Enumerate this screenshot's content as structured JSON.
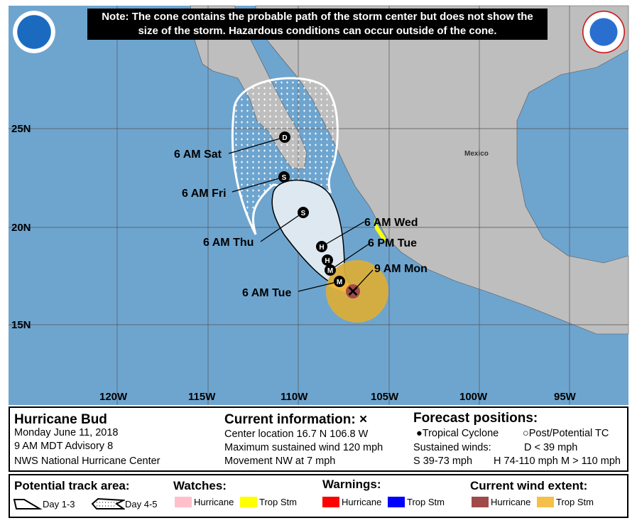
{
  "note": "Note: The cone contains the probable path of the storm center but does not show the size of the storm. Hazardous conditions can occur outside of the cone.",
  "logos": {
    "left": "NOAA",
    "right": "NATIONAL WEATHER SERVICE"
  },
  "map": {
    "country_label": "Mexico",
    "lon_labels": [
      "120W",
      "115W",
      "110W",
      "105W",
      "100W",
      "95W"
    ],
    "lat_labels": [
      "25N",
      "20N",
      "15N"
    ],
    "colors": {
      "ocean": "#6ea5cf",
      "land": "#bebebe",
      "cone_day13": "#dde8f1",
      "trop_storm_wind": "#f2b53c",
      "hurricane_wind": "#a04b49",
      "trop_storm_watch": "#ffff00"
    },
    "forecast_points": [
      {
        "label": "9 AM Mon",
        "marker": "x"
      },
      {
        "label": "6 AM Tue",
        "marker": "M"
      },
      {
        "label": "6 PM Tue",
        "marker": "M"
      },
      {
        "label": "6 AM Wed",
        "marker": "H"
      },
      {
        "label": "",
        "marker": "H"
      },
      {
        "label": "6 AM Thu",
        "marker": "S"
      },
      {
        "label": "6 AM Fri",
        "marker": "S"
      },
      {
        "label": "6 AM Sat",
        "marker": "D"
      }
    ]
  },
  "info": {
    "storm_name": "Hurricane Bud",
    "date": "Monday June 11, 2018",
    "advisory": "9 AM MDT Advisory 8",
    "center": "NWS National Hurricane Center",
    "current_title": "Current information: ×",
    "location": "Center location 16.7 N 106.8 W",
    "max_wind": "Maximum sustained wind 120 mph",
    "movement": "Movement NW at 7 mph",
    "forecast_title": "Forecast positions:",
    "tc": "Tropical Cyclone",
    "post_tc": "Post/Potential TC",
    "sustained": "Sustained winds:",
    "d": "D < 39 mph",
    "s": "S 39-73 mph",
    "hh": "H 74-110 mph",
    "m": "M > 110 mph"
  },
  "legend": {
    "track_title": "Potential track area:",
    "day13": "Day 1-3",
    "day45": "Day 4-5",
    "watches_title": "Watches:",
    "warnings_title": "Warnings:",
    "wind_title": "Current wind extent:",
    "hurricane": "Hurricane",
    "trop_stm": "Trop Stm",
    "colors": {
      "watch_hurricane": "#ffc0cb",
      "watch_ts": "#ffff00",
      "warn_hurricane": "#ff0000",
      "warn_ts": "#0000ff",
      "wind_hurricane": "#a04b49",
      "wind_ts": "#f5c04a"
    }
  }
}
